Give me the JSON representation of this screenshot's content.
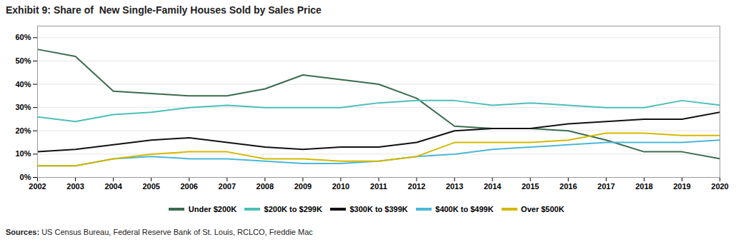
{
  "chart_data": {
    "type": "line",
    "title": "Exhibit 9: Share of  New Single-Family Houses Sold by Sales Price",
    "source_label": "Sources:",
    "source": "US Census Bureau, Federal Reserve Bank of St. Louis, RCLCO, Freddie Mac",
    "x": [
      2002,
      2003,
      2004,
      2005,
      2006,
      2007,
      2008,
      2009,
      2010,
      2011,
      2012,
      2013,
      2014,
      2015,
      2016,
      2017,
      2018,
      2019,
      2020
    ],
    "series": [
      {
        "name": "Under $200K",
        "color": "#3a6b4e",
        "values": [
          0.55,
          0.52,
          0.37,
          0.36,
          0.35,
          0.35,
          0.38,
          0.44,
          0.42,
          0.4,
          0.34,
          0.22,
          0.21,
          0.21,
          0.2,
          0.16,
          0.11,
          0.11,
          0.08
        ]
      },
      {
        "name": "$200K to $299K",
        "color": "#4bbfb8",
        "values": [
          0.26,
          0.24,
          0.27,
          0.28,
          0.3,
          0.31,
          0.3,
          0.3,
          0.3,
          0.32,
          0.33,
          0.33,
          0.31,
          0.32,
          0.31,
          0.3,
          0.3,
          0.33,
          0.31
        ]
      },
      {
        "name": "$300K to $399K",
        "color": "#111111",
        "values": [
          0.11,
          0.12,
          0.14,
          0.16,
          0.17,
          0.15,
          0.13,
          0.12,
          0.13,
          0.13,
          0.15,
          0.2,
          0.21,
          0.21,
          0.23,
          0.24,
          0.25,
          0.25,
          0.28
        ]
      },
      {
        "name": "$400K to $499K",
        "color": "#4ab8d8",
        "values": [
          0.05,
          0.05,
          0.08,
          0.09,
          0.08,
          0.08,
          0.07,
          0.06,
          0.06,
          0.07,
          0.09,
          0.1,
          0.12,
          0.13,
          0.14,
          0.15,
          0.15,
          0.15,
          0.16
        ]
      },
      {
        "name": "Over $500K",
        "color": "#d4b800",
        "values": [
          0.05,
          0.05,
          0.08,
          0.1,
          0.11,
          0.11,
          0.08,
          0.08,
          0.07,
          0.07,
          0.09,
          0.15,
          0.15,
          0.15,
          0.16,
          0.19,
          0.19,
          0.18,
          0.18
        ]
      }
    ],
    "xlim": [
      2002,
      2020
    ],
    "xticks": [
      2002,
      2003,
      2004,
      2005,
      2006,
      2007,
      2008,
      2009,
      2010,
      2011,
      2012,
      2013,
      2014,
      2015,
      2016,
      2017,
      2018,
      2019,
      2020
    ],
    "ylim": [
      0,
      0.65
    ],
    "yticks": [
      {
        "value": 0,
        "label": "0%"
      },
      {
        "value": 0.1,
        "label": "10%"
      },
      {
        "value": 0.2,
        "label": "20%"
      },
      {
        "value": 0.3,
        "label": "30%"
      },
      {
        "value": 0.4,
        "label": "40%"
      },
      {
        "value": 0.5,
        "label": "50%"
      },
      {
        "value": 0.6,
        "label": "60%"
      }
    ],
    "grid": true,
    "legend": "bottom"
  }
}
